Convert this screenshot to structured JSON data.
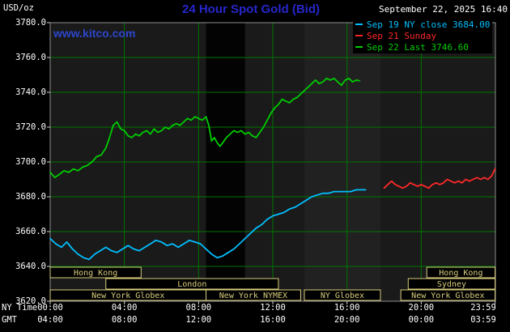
{
  "header": {
    "unit_label": "USD/oz",
    "title": "24 Hour Spot Gold (Bid)",
    "datetime": "September 22, 2025 16:40",
    "watermark": "www.kitco.com",
    "legend": [
      {
        "label": "Sep 19 NY close 3684.00",
        "color": "#00bfff"
      },
      {
        "label": "Sep 21 Sunday",
        "color": "#ff2828"
      },
      {
        "label": "Sep 22 Last 3746.60",
        "color": "#00cc00"
      }
    ]
  },
  "axes": {
    "y_ticks": [
      "3780.0",
      "3760.0",
      "3740.0",
      "3720.0",
      "3700.0",
      "3680.0",
      "3660.0",
      "3640.0",
      "3620.0"
    ],
    "x_rows": [
      {
        "name": "NY Time",
        "labels": [
          "00:00",
          "04:00",
          "08:00",
          "12:00",
          "16:00",
          "20:00",
          "23:59"
        ]
      },
      {
        "name": "GMT",
        "labels": [
          "04:00",
          "08:00",
          "12:00",
          "16:00",
          "20:00",
          "00:00",
          "03:59"
        ]
      }
    ],
    "x_label_hours": [
      0,
      4,
      8,
      12,
      16,
      20,
      23.983
    ]
  },
  "chart_data": {
    "type": "line",
    "title": "24 Hour Spot Gold (Bid)",
    "xlabel": "NY Time",
    "ylabel": "USD/oz",
    "xlim": [
      0,
      24
    ],
    "ylim": [
      3620,
      3780
    ],
    "y_step": 20,
    "grid": true,
    "grid_hours": [
      0,
      4,
      8,
      12,
      16,
      20
    ],
    "tick_hours": [
      0,
      4,
      8,
      12,
      16,
      20,
      23.983
    ],
    "colors": {
      "plot_bg": "#1a1a1a",
      "grid": "#007500",
      "border": "#8f8f8f",
      "tick": "#cccccc",
      "session": "#d8cc7c",
      "title_blue": "#2626cc",
      "link_blue": "#2c46cc"
    },
    "bands": [
      {
        "start": 8.4,
        "end": 10.5,
        "color": "#030303"
      },
      {
        "start": 13.7,
        "end": 17.8,
        "color": "#212121"
      }
    ],
    "series": [
      {
        "name": "Sep 19 NY close 3684.00",
        "color": "#00bfff",
        "points": [
          [
            0,
            3656
          ],
          [
            0.3,
            3653
          ],
          [
            0.6,
            3651
          ],
          [
            0.9,
            3654
          ],
          [
            1.2,
            3650
          ],
          [
            1.5,
            3647
          ],
          [
            1.8,
            3645
          ],
          [
            2.1,
            3644
          ],
          [
            2.4,
            3647
          ],
          [
            2.7,
            3649
          ],
          [
            3.0,
            3651
          ],
          [
            3.3,
            3649
          ],
          [
            3.6,
            3648
          ],
          [
            3.9,
            3650
          ],
          [
            4.2,
            3652
          ],
          [
            4.5,
            3650
          ],
          [
            4.8,
            3649
          ],
          [
            5.1,
            3651
          ],
          [
            5.4,
            3653
          ],
          [
            5.7,
            3655
          ],
          [
            6.0,
            3654
          ],
          [
            6.3,
            3652
          ],
          [
            6.6,
            3653
          ],
          [
            6.9,
            3651
          ],
          [
            7.2,
            3653
          ],
          [
            7.5,
            3655
          ],
          [
            7.8,
            3654
          ],
          [
            8.1,
            3653
          ],
          [
            8.4,
            3650
          ],
          [
            8.7,
            3647
          ],
          [
            9.0,
            3645
          ],
          [
            9.3,
            3646
          ],
          [
            9.6,
            3648
          ],
          [
            9.9,
            3650
          ],
          [
            10.2,
            3653
          ],
          [
            10.5,
            3656
          ],
          [
            10.8,
            3659
          ],
          [
            11.1,
            3662
          ],
          [
            11.4,
            3664
          ],
          [
            11.7,
            3667
          ],
          [
            12.0,
            3669
          ],
          [
            12.3,
            3670
          ],
          [
            12.6,
            3671
          ],
          [
            12.9,
            3673
          ],
          [
            13.2,
            3674
          ],
          [
            13.5,
            3676
          ],
          [
            13.8,
            3678
          ],
          [
            14.1,
            3680
          ],
          [
            14.4,
            3681
          ],
          [
            14.7,
            3682
          ],
          [
            15.0,
            3682
          ],
          [
            15.3,
            3683
          ],
          [
            15.6,
            3683
          ],
          [
            15.9,
            3683
          ],
          [
            16.2,
            3683
          ],
          [
            16.5,
            3684
          ],
          [
            17.0,
            3684
          ]
        ]
      },
      {
        "name": "Sep 21 Sunday",
        "color": "#ff2828",
        "points": [
          [
            18.0,
            3685
          ],
          [
            18.2,
            3687
          ],
          [
            18.4,
            3689
          ],
          [
            18.6,
            3687
          ],
          [
            18.8,
            3686
          ],
          [
            19.0,
            3685
          ],
          [
            19.2,
            3686
          ],
          [
            19.4,
            3688
          ],
          [
            19.6,
            3687
          ],
          [
            19.8,
            3686
          ],
          [
            20.0,
            3687
          ],
          [
            20.2,
            3686
          ],
          [
            20.4,
            3685
          ],
          [
            20.6,
            3687
          ],
          [
            20.8,
            3688
          ],
          [
            21.0,
            3687
          ],
          [
            21.2,
            3688
          ],
          [
            21.4,
            3690
          ],
          [
            21.6,
            3689
          ],
          [
            21.8,
            3688
          ],
          [
            22.0,
            3689
          ],
          [
            22.2,
            3688
          ],
          [
            22.4,
            3690
          ],
          [
            22.6,
            3689
          ],
          [
            22.8,
            3690
          ],
          [
            23.0,
            3691
          ],
          [
            23.2,
            3690
          ],
          [
            23.4,
            3691
          ],
          [
            23.6,
            3690
          ],
          [
            23.8,
            3692
          ],
          [
            23.98,
            3696
          ]
        ]
      },
      {
        "name": "Sep 22 Last 3746.60",
        "color": "#00cc00",
        "points": [
          [
            0,
            3694
          ],
          [
            0.25,
            3691
          ],
          [
            0.5,
            3693
          ],
          [
            0.75,
            3695
          ],
          [
            1.0,
            3694
          ],
          [
            1.25,
            3696
          ],
          [
            1.5,
            3695
          ],
          [
            1.75,
            3697
          ],
          [
            2.0,
            3698
          ],
          [
            2.25,
            3700
          ],
          [
            2.5,
            3703
          ],
          [
            2.75,
            3704
          ],
          [
            3.0,
            3708
          ],
          [
            3.2,
            3714
          ],
          [
            3.4,
            3721
          ],
          [
            3.6,
            3723
          ],
          [
            3.8,
            3719
          ],
          [
            4.0,
            3718
          ],
          [
            4.2,
            3715
          ],
          [
            4.4,
            3714
          ],
          [
            4.6,
            3716
          ],
          [
            4.8,
            3715
          ],
          [
            5.0,
            3717
          ],
          [
            5.2,
            3718
          ],
          [
            5.4,
            3716
          ],
          [
            5.6,
            3719
          ],
          [
            5.8,
            3717
          ],
          [
            6.0,
            3718
          ],
          [
            6.2,
            3720
          ],
          [
            6.4,
            3719
          ],
          [
            6.6,
            3721
          ],
          [
            6.8,
            3722
          ],
          [
            7.0,
            3721
          ],
          [
            7.2,
            3723
          ],
          [
            7.4,
            3725
          ],
          [
            7.6,
            3724
          ],
          [
            7.8,
            3726
          ],
          [
            8.0,
            3725
          ],
          [
            8.2,
            3724
          ],
          [
            8.4,
            3726
          ],
          [
            8.55,
            3721
          ],
          [
            8.7,
            3712
          ],
          [
            8.85,
            3714
          ],
          [
            9.0,
            3711
          ],
          [
            9.15,
            3709
          ],
          [
            9.3,
            3711
          ],
          [
            9.5,
            3714
          ],
          [
            9.7,
            3716
          ],
          [
            9.9,
            3718
          ],
          [
            10.1,
            3717
          ],
          [
            10.3,
            3718
          ],
          [
            10.5,
            3716
          ],
          [
            10.7,
            3717
          ],
          [
            10.9,
            3715
          ],
          [
            11.1,
            3714
          ],
          [
            11.3,
            3717
          ],
          [
            11.5,
            3720
          ],
          [
            11.7,
            3724
          ],
          [
            11.9,
            3728
          ],
          [
            12.1,
            3731
          ],
          [
            12.3,
            3733
          ],
          [
            12.5,
            3736
          ],
          [
            12.7,
            3735
          ],
          [
            12.9,
            3734
          ],
          [
            13.1,
            3736
          ],
          [
            13.3,
            3737
          ],
          [
            13.5,
            3739
          ],
          [
            13.7,
            3741
          ],
          [
            13.9,
            3743
          ],
          [
            14.1,
            3745
          ],
          [
            14.3,
            3747
          ],
          [
            14.5,
            3745
          ],
          [
            14.7,
            3746
          ],
          [
            14.9,
            3748
          ],
          [
            15.1,
            3747
          ],
          [
            15.3,
            3748
          ],
          [
            15.5,
            3746
          ],
          [
            15.7,
            3744
          ],
          [
            15.9,
            3747
          ],
          [
            16.1,
            3748
          ],
          [
            16.3,
            3746
          ],
          [
            16.5,
            3747
          ],
          [
            16.67,
            3746.6
          ]
        ]
      }
    ],
    "sessions": [
      {
        "row": 0,
        "label": "Hong Kong",
        "start": 0,
        "end": 4.9
      },
      {
        "row": 0,
        "label": "Hong Kong",
        "start": 20.3,
        "end": 23.98
      },
      {
        "row": 1,
        "label": "London",
        "start": 3.0,
        "end": 12.3
      },
      {
        "row": 1,
        "label": "Sydney",
        "start": 19.3,
        "end": 23.98
      },
      {
        "row": 2,
        "label": "New York Globex",
        "start": 0,
        "end": 8.4
      },
      {
        "row": 2,
        "label": "New York NYMEX",
        "start": 8.4,
        "end": 13.5
      },
      {
        "row": 2,
        "label": "NY Globex",
        "start": 13.7,
        "end": 17.8
      },
      {
        "row": 2,
        "label": "New York Globex",
        "start": 18.9,
        "end": 23.98
      }
    ]
  }
}
